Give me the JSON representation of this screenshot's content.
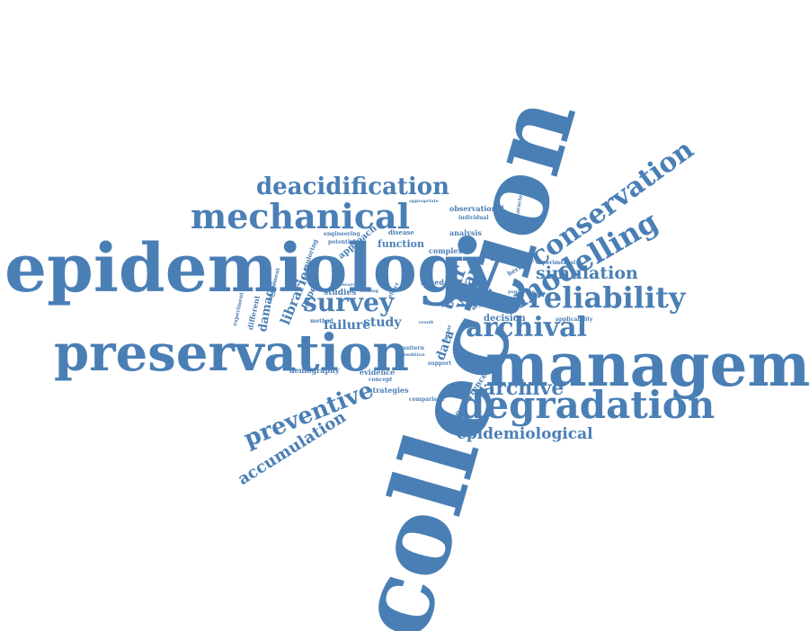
{
  "color": "#4a7fb5",
  "words": [
    "collection",
    "epidemiology",
    "management",
    "preservation",
    "degradation",
    "mechanical",
    "deacidification",
    "conservation",
    "modelling",
    "reliability",
    "survey",
    "archival",
    "simulation",
    "preventive",
    "accumulation",
    "archive",
    "epidemiological",
    "tear",
    "wear",
    "study",
    "failure",
    "libraries",
    "damage",
    "paper",
    "studies",
    "function",
    "disease",
    "analysis",
    "complex",
    "based",
    "approach",
    "potential",
    "engineering",
    "observational",
    "individual",
    "appropriate",
    "characteristic",
    "experimental",
    "heritage",
    "population",
    "decision",
    "applicability",
    "different",
    "experiment",
    "assessment",
    "method",
    "demography",
    "evidence",
    "concept",
    "strategies",
    "comparison",
    "occurrence",
    "pattern",
    "support",
    "result",
    "factor",
    "agent",
    "data",
    "exploring",
    "making",
    "condition",
    "effect",
    "research"
  ]
}
